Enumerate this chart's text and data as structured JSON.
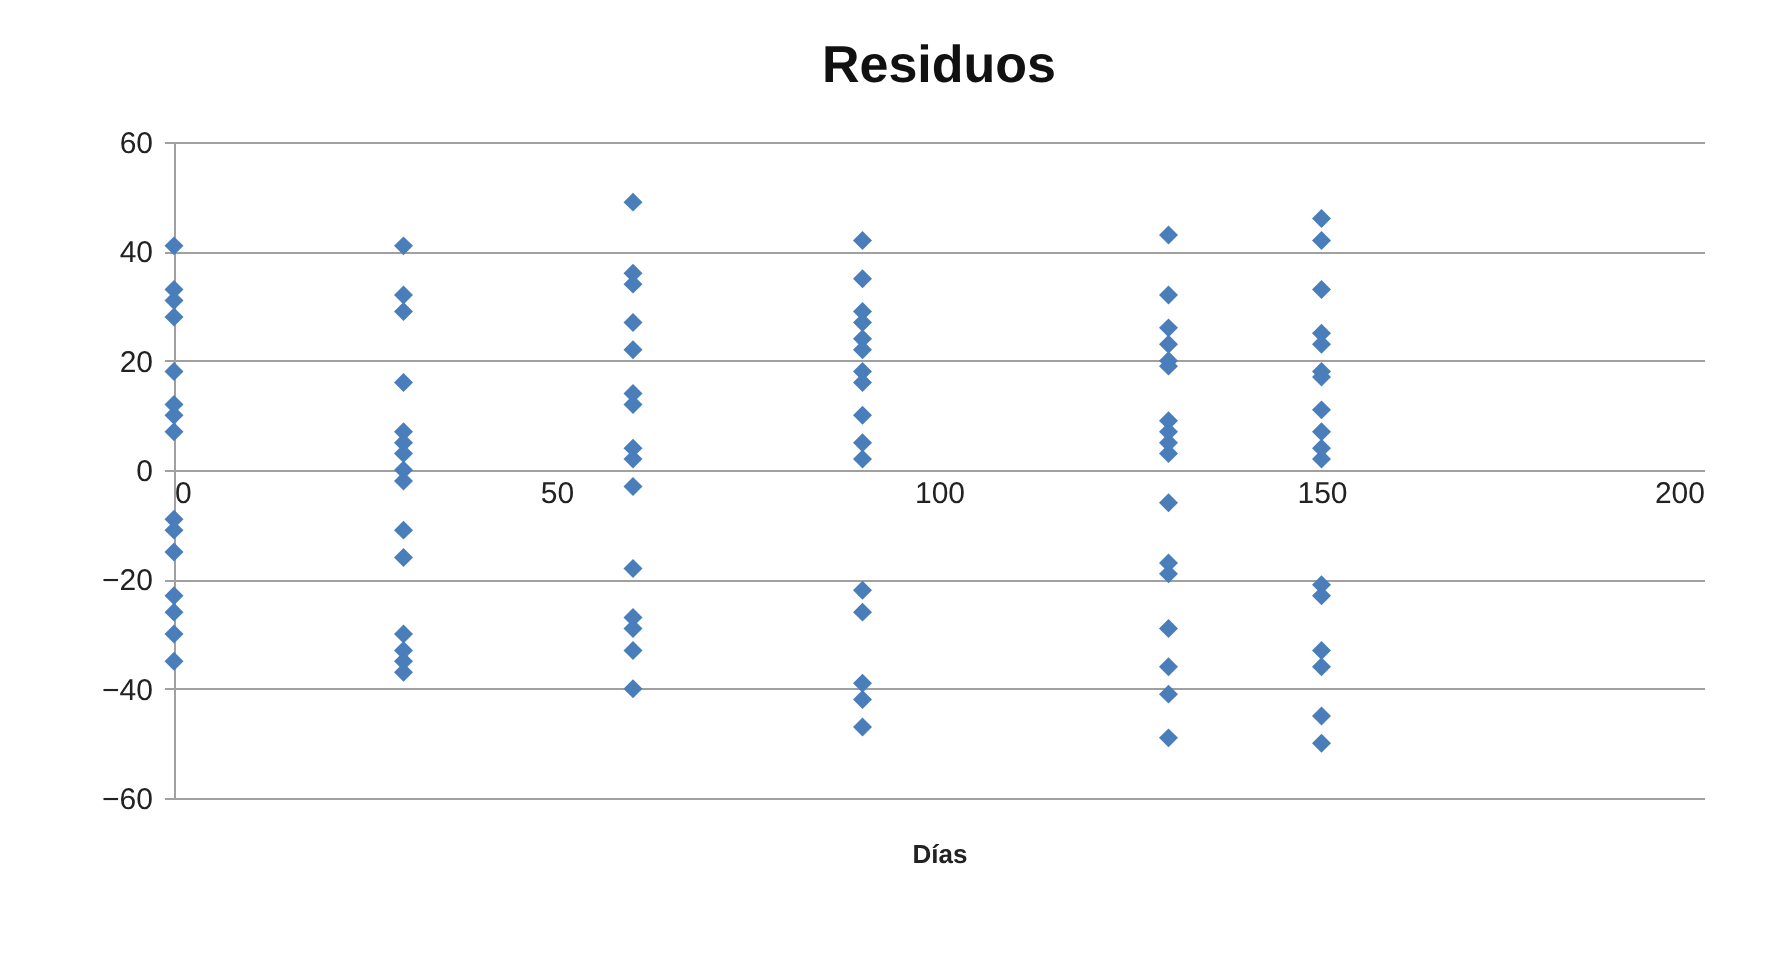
{
  "chart_data": {
    "type": "scatter",
    "title": "Residuos",
    "xlabel": "Días",
    "x": [
      0,
      0,
      0,
      0,
      0,
      0,
      0,
      0,
      0,
      0,
      0,
      0,
      0,
      0,
      0,
      30,
      30,
      30,
      30,
      30,
      30,
      30,
      30,
      30,
      30,
      30,
      30,
      30,
      30,
      30,
      60,
      60,
      60,
      60,
      60,
      60,
      60,
      60,
      60,
      60,
      60,
      60,
      60,
      60,
      60,
      90,
      90,
      90,
      90,
      90,
      90,
      90,
      90,
      90,
      90,
      90,
      90,
      90,
      90,
      90,
      90,
      130,
      130,
      130,
      130,
      130,
      130,
      130,
      130,
      130,
      130,
      130,
      130,
      130,
      130,
      130,
      130,
      130,
      150,
      150,
      150,
      150,
      150,
      150,
      150,
      150,
      150,
      150,
      150,
      150,
      150,
      150,
      150,
      150,
      150
    ],
    "series": [
      {
        "color": "#4a7ebb",
        "values": [
          41,
          33,
          31,
          28,
          18,
          12,
          10,
          7,
          -9,
          -11,
          -15,
          -23,
          -26,
          -30,
          -35,
          41,
          32,
          29,
          16,
          7,
          5,
          3,
          0,
          -2,
          -11,
          -16,
          -30,
          -33,
          -35,
          -37,
          49,
          36,
          34,
          27,
          22,
          14,
          12,
          4,
          2,
          -3,
          -18,
          -27,
          -29,
          -33,
          -40,
          42,
          35,
          29,
          27,
          24,
          22,
          18,
          16,
          10,
          5,
          2,
          -22,
          -26,
          -39,
          -42,
          -47,
          43,
          32,
          26,
          23,
          20,
          19,
          9,
          7,
          5,
          3,
          -6,
          -17,
          -19,
          -29,
          -36,
          -41,
          -49,
          46,
          42,
          33,
          25,
          23,
          18,
          17,
          11,
          7,
          4,
          2,
          -21,
          -23,
          -33,
          -36,
          -45,
          -50
        ]
      }
    ],
    "xlim": [
      0,
      200
    ],
    "xticks": [
      0,
      50,
      100,
      150,
      200
    ],
    "ylim": [
      -60,
      60
    ],
    "yticks": [
      -60,
      -40,
      -20,
      0,
      20,
      40,
      60
    ],
    "grid": "y",
    "marker": "diamond"
  }
}
